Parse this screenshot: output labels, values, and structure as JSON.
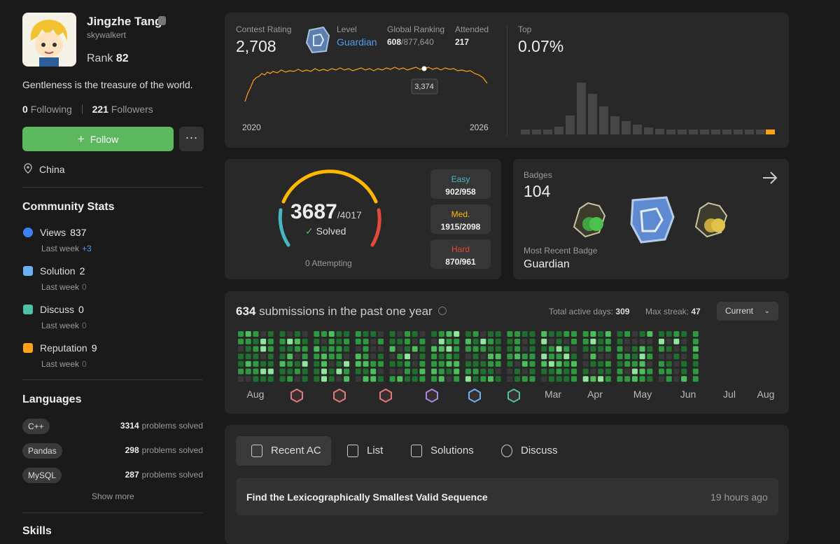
{
  "profile": {
    "name": "Jingzhe Tang",
    "username": "skywalkert",
    "rank_label": "Rank",
    "rank": 82,
    "bio": "Gentleness is the treasure of the world.",
    "following": 0,
    "following_label": "Following",
    "followers": 221,
    "followers_label": "Followers",
    "follow_button": "Follow",
    "location": "China"
  },
  "community_stats": {
    "title": "Community Stats",
    "items": [
      {
        "label": "Views",
        "value": 837,
        "sub_label": "Last week",
        "sub_value": "+3"
      },
      {
        "label": "Solution",
        "value": 2,
        "sub_label": "Last week",
        "sub_value": 0
      },
      {
        "label": "Discuss",
        "value": 0,
        "sub_label": "Last week",
        "sub_value": 0
      },
      {
        "label": "Reputation",
        "value": 9,
        "sub_label": "Last week",
        "sub_value": 0
      }
    ]
  },
  "languages": {
    "title": "Languages",
    "items": [
      {
        "name": "C++",
        "count": 3314,
        "suffix": "problems solved"
      },
      {
        "name": "Pandas",
        "count": 298,
        "suffix": "problems solved"
      },
      {
        "name": "MySQL",
        "count": 287,
        "suffix": "problems solved"
      }
    ],
    "show_more": "Show more"
  },
  "skills_title": "Skills",
  "contest": {
    "rating_label": "Contest Rating",
    "rating": "2,708",
    "level_label": "Level",
    "level": "Guardian",
    "ranking_label": "Global Ranking",
    "ranking": 608,
    "ranking_total": "/877,640",
    "attended_label": "Attended",
    "attended": 217,
    "tooltip": "3,374",
    "start_year": "2020",
    "end_year": "2026",
    "top_label": "Top",
    "top": "0.07%"
  },
  "problems": {
    "solved": 3687,
    "total": "/4017",
    "solved_label": "Solved",
    "attempting": 0,
    "attempting_label": "Attempting",
    "difficulties": [
      {
        "name": "Easy",
        "value": "902/958"
      },
      {
        "name": "Med.",
        "value": "1915/2098"
      },
      {
        "name": "Hard",
        "value": "870/961"
      }
    ]
  },
  "badges": {
    "title": "Badges",
    "count": 104,
    "recent_label": "Most Recent Badge",
    "recent": "Guardian"
  },
  "submissions": {
    "count": 634,
    "label": "submissions in the past one year",
    "active_label": "Total active days:",
    "active": 309,
    "streak_label": "Max streak:",
    "streak": 47,
    "select": "Current",
    "months": [
      "Aug",
      "Mar",
      "Apr",
      "May",
      "Jun",
      "Jul",
      "Aug"
    ]
  },
  "tabs": [
    "Recent AC",
    "List",
    "Solutions",
    "Discuss"
  ],
  "recent": [
    {
      "title": "Find the Lexicographically Smallest Valid Sequence",
      "time": "19 hours ago"
    }
  ]
}
